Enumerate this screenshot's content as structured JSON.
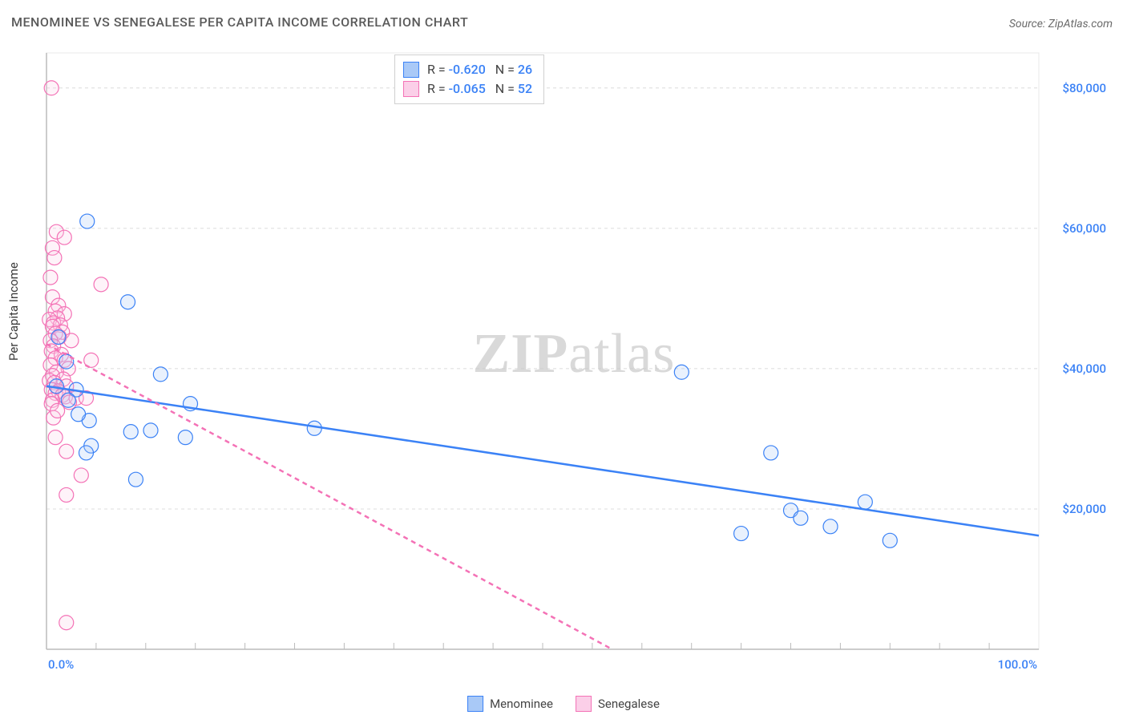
{
  "title": "MENOMINEE VS SENEGALESE PER CAPITA INCOME CORRELATION CHART",
  "source": "Source: ZipAtlas.com",
  "ylabel": "Per Capita Income",
  "watermark_a": "ZIP",
  "watermark_b": "atlas",
  "chart": {
    "type": "scatter",
    "xlim": [
      0,
      100
    ],
    "ylim": [
      0,
      85000
    ],
    "xticks": [
      0,
      100
    ],
    "xtick_labels": [
      "0.0%",
      "100.0%"
    ],
    "yticks": [
      20000,
      40000,
      60000,
      80000
    ],
    "ytick_labels": [
      "$20,000",
      "$40,000",
      "$60,000",
      "$80,000"
    ],
    "minor_xticks": [
      5,
      10,
      15,
      20,
      25,
      30,
      35,
      40,
      45,
      50,
      55,
      60,
      65,
      70,
      75,
      80,
      85,
      90,
      95
    ],
    "background_color": "#ffffff",
    "grid_color": "#dcdcdc",
    "axis_color": "#bcbcbc",
    "border_color": "#e8e8e8",
    "label_color": "#3b82f6",
    "marker_radius": 9,
    "marker_fill_opacity": 0.25,
    "marker_stroke_width": 1.2,
    "trend_stroke_width": 2.5,
    "series": [
      {
        "name": "Menominee",
        "color": "#3b82f6",
        "fill": "#a9c9f7",
        "R": "-0.620",
        "N": "26",
        "trend": {
          "x1": 0,
          "y1": 37500,
          "x2": 100,
          "y2": 16200,
          "dash": null
        },
        "points": [
          [
            4.1,
            61000
          ],
          [
            8.2,
            49500
          ],
          [
            1.2,
            44500
          ],
          [
            2.0,
            41000
          ],
          [
            11.5,
            39200
          ],
          [
            3.0,
            37000
          ],
          [
            1.0,
            37500
          ],
          [
            2.2,
            35500
          ],
          [
            4.3,
            32600
          ],
          [
            14.5,
            35000
          ],
          [
            8.5,
            31000
          ],
          [
            10.5,
            31200
          ],
          [
            14.0,
            30200
          ],
          [
            3.2,
            33500
          ],
          [
            4.5,
            29000
          ],
          [
            27.0,
            31500
          ],
          [
            9.0,
            24200
          ],
          [
            4.0,
            28000
          ],
          [
            64.0,
            39500
          ],
          [
            73.0,
            28000
          ],
          [
            70.0,
            16500
          ],
          [
            75.0,
            19800
          ],
          [
            76.0,
            18700
          ],
          [
            79.0,
            17500
          ],
          [
            85.0,
            15500
          ],
          [
            82.5,
            21000
          ]
        ]
      },
      {
        "name": "Senegalese",
        "color": "#f472b6",
        "fill": "#fbcfe8",
        "R": "-0.065",
        "N": "52",
        "trend": {
          "x1": 0,
          "y1": 43500,
          "x2": 57,
          "y2": 0,
          "dash": "6 5"
        },
        "points": [
          [
            0.5,
            80000
          ],
          [
            1.0,
            59500
          ],
          [
            1.8,
            58700
          ],
          [
            0.6,
            57200
          ],
          [
            0.8,
            55800
          ],
          [
            0.4,
            53000
          ],
          [
            5.5,
            52000
          ],
          [
            0.6,
            50200
          ],
          [
            1.2,
            49000
          ],
          [
            0.9,
            48200
          ],
          [
            1.8,
            47800
          ],
          [
            1.1,
            47200
          ],
          [
            0.3,
            47000
          ],
          [
            0.7,
            46500
          ],
          [
            1.4,
            46200
          ],
          [
            0.6,
            46000
          ],
          [
            1.6,
            45200
          ],
          [
            0.9,
            45000
          ],
          [
            1.3,
            44500
          ],
          [
            0.4,
            44000
          ],
          [
            2.5,
            44000
          ],
          [
            0.7,
            43200
          ],
          [
            0.5,
            42500
          ],
          [
            1.5,
            42000
          ],
          [
            0.9,
            41500
          ],
          [
            1.8,
            41200
          ],
          [
            4.5,
            41200
          ],
          [
            0.4,
            40500
          ],
          [
            2.2,
            40000
          ],
          [
            1.0,
            39500
          ],
          [
            0.6,
            39000
          ],
          [
            1.7,
            38500
          ],
          [
            0.3,
            38300
          ],
          [
            0.8,
            38000
          ],
          [
            2.0,
            37500
          ],
          [
            0.5,
            37000
          ],
          [
            1.2,
            36800
          ],
          [
            0.9,
            36500
          ],
          [
            1.6,
            36200
          ],
          [
            1.9,
            36000
          ],
          [
            3.0,
            35800
          ],
          [
            4.0,
            35800
          ],
          [
            0.6,
            35500
          ],
          [
            2.3,
            35200
          ],
          [
            0.7,
            33000
          ],
          [
            0.9,
            30200
          ],
          [
            2.0,
            28200
          ],
          [
            3.5,
            24800
          ],
          [
            2.0,
            22000
          ],
          [
            0.5,
            35000
          ],
          [
            1.1,
            34000
          ],
          [
            2.0,
            3800
          ]
        ]
      }
    ]
  },
  "legend_series": [
    {
      "label": "Menominee",
      "fill": "#a9c9f7",
      "stroke": "#3b82f6"
    },
    {
      "label": "Senegalese",
      "fill": "#fbcfe8",
      "stroke": "#f472b6"
    }
  ]
}
